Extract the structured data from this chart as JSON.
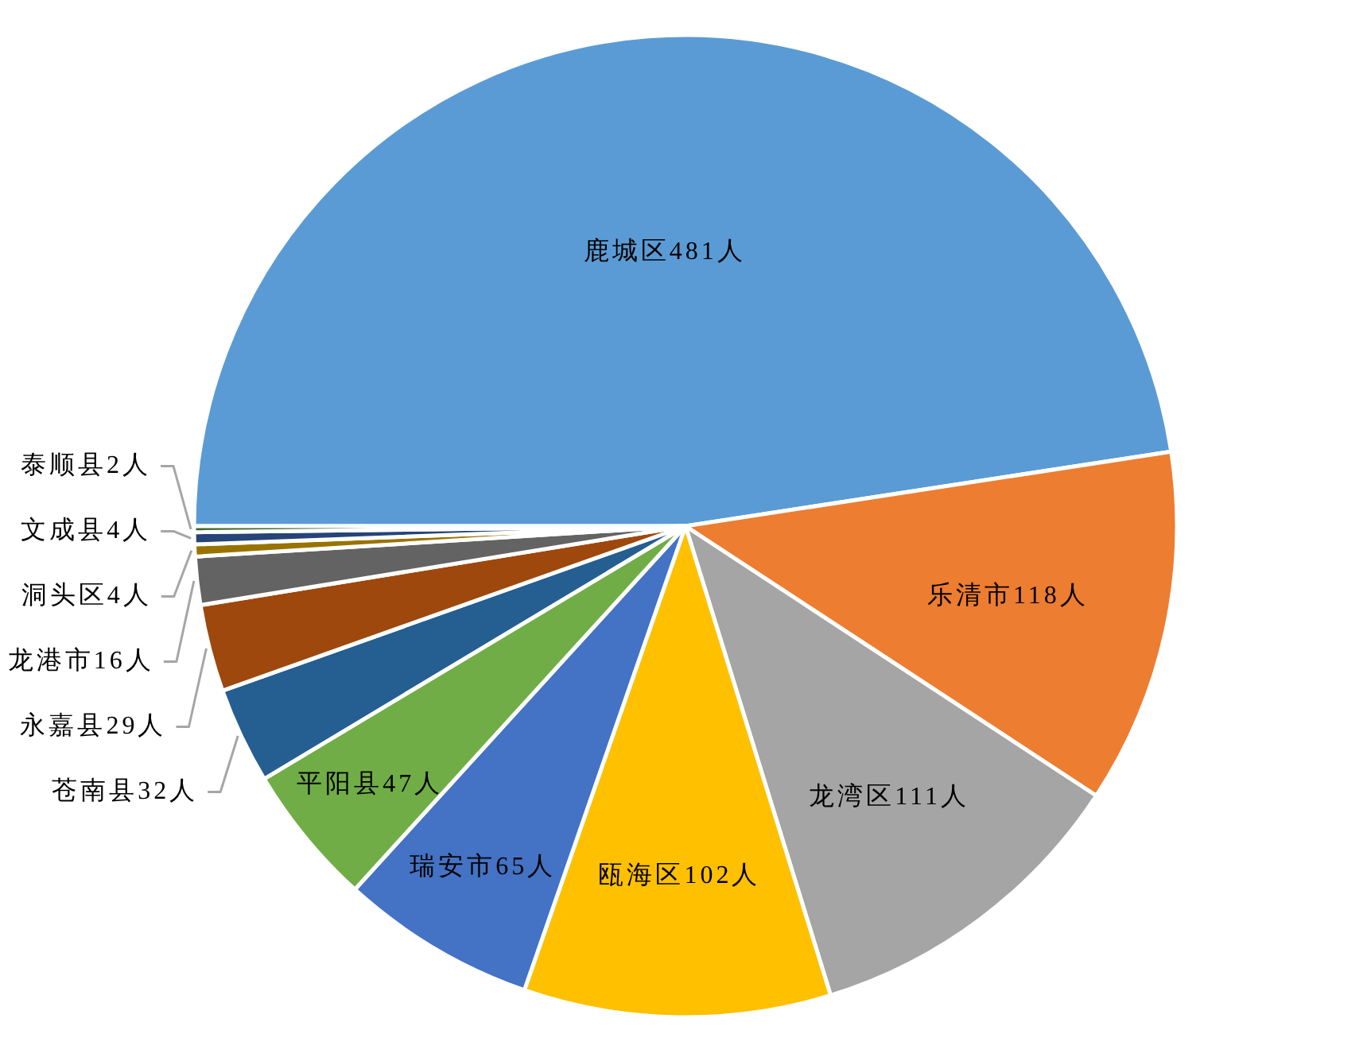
{
  "chart_data": {
    "type": "pie",
    "categories": [
      "鹿城区",
      "乐清市",
      "龙湾区",
      "瓯海区",
      "瑞安市",
      "平阳县",
      "苍南县",
      "永嘉县",
      "龙港市",
      "洞头区",
      "文成县",
      "泰顺县"
    ],
    "values": [
      481,
      118,
      111,
      102,
      65,
      47,
      32,
      29,
      16,
      4,
      4,
      2
    ],
    "value_labels": [
      "481人",
      "118人",
      "111人",
      "102人",
      "65人",
      "47人",
      "32人",
      "29人",
      "16人",
      "4人",
      "4人",
      "2人"
    ],
    "colors": [
      "#5b9bd5",
      "#ed7d31",
      "#a5a5a5",
      "#ffc000",
      "#4472c4",
      "#70ad47",
      "#255e91",
      "#9e480e",
      "#636363",
      "#997300",
      "#264478",
      "#43682b"
    ]
  }
}
